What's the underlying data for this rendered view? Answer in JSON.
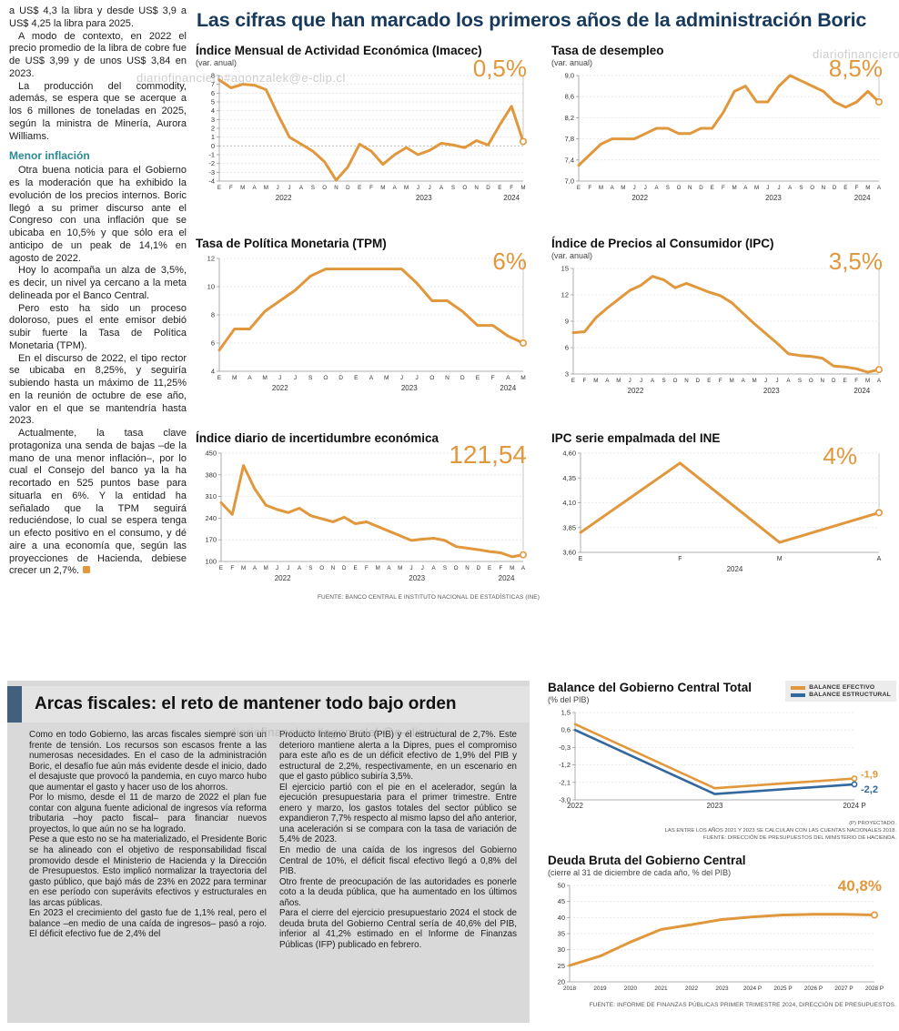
{
  "watermark": "diariofinanciero#agonzalek@e-clip.cl",
  "headline": "Las cifras que han marcado los primeros años de la administración Boric",
  "left_column": {
    "top_paragraphs": [
      "a US$ 4,3 la libra y desde US$ 3,9 a US$ 4,25 la libra para 2025.",
      "A modo de contexto, en 2022 el precio promedio de la libra de cobre fue de US$ 3,99 y de unos US$ 3,84 en 2023.",
      "La producción del commodity, además, se espera que se acerque a los 6 millones de toneladas en 2025, según la ministra de Minería, Aurora Williams."
    ],
    "subhead": "Menor inflación",
    "bottom_paragraphs": [
      "Otra buena noticia para el Gobierno es la moderación que ha exhibido la evolución de los precios internos. Boric llegó a su primer discurso ante el Congreso con una inflación que se ubicaba en 10,5% y que sólo era el anticipo de un peak de 14,1% en agosto de 2022.",
      "Hoy lo acompaña un alza de 3,5%, es decir, un nivel ya cercano a la meta delineada por el Banco Central.",
      "Pero esto ha sido un proceso doloroso, pues el ente emisor debió subir fuerte la Tasa de Política Monetaria (TPM).",
      "En el discurso de 2022, el tipo rector se ubicaba en 8,25%, y seguiría subiendo hasta un máximo de 11,25% en la reunión de octubre de ese año, valor en el que se mantendría hasta 2023."
    ],
    "last_paragraph": "Actualmente, la tasa clave protagoniza una senda de bajas –de la mano de una menor inflación–, por lo cual el Consejo del banco ya la ha recortado en 525 puntos base para situarla en 6%. Y la entidad ha señalado que la TPM seguirá reduciéndose, lo cual se espera tenga un efecto positivo en el consumo, y dé aire a una economía que, según las proyecciones de Hacienda, debiese crecer un 2,7%."
  },
  "fiscal_panel": {
    "title": "Arcas fiscales: el reto de mantener todo bajo orden",
    "col1": [
      "Como en todo Gobierno, las arcas fiscales siempre son un frente de tensión. Los recursos son escasos frente a las numerosas necesidades. En el caso de la administración Boric, el desafío fue aún más evidente desde el inicio, dado el desajuste que provocó la pandemia, en cuyo marco hubo que aumentar el gasto y hacer uso de los ahorros.",
      "Por lo mismo, desde el 11 de marzo de 2022 el plan fue contar con alguna fuente adicional de ingresos vía reforma tributaria –hoy pacto fiscal– para financiar nuevos proyectos, lo que aún no se ha logrado.",
      "Pese a que esto no se ha materializado, el Presidente Boric se ha alineado con el objetivo de responsabilidad fiscal promovido desde el Ministerio de Hacienda y la Dirección de Presupuestos. Esto implicó normalizar la trayectoria del gasto público, que bajó más de 23% en 2022 para terminar en ese período con superávits efectivos y estructurales en las arcas públicas.",
      "En 2023 el crecimiento del gasto fue de 1,1% real, pero el balance –en medio de una caída de ingresos– pasó a rojo. El déficit efectivo fue de 2,4% del"
    ],
    "col2": [
      "Producto Interno Bruto (PIB) y el estructural de 2,7%. Este deterioro mantiene alerta a la Dipres, pues el compromiso para este año es de un déficit efectivo de 1,9% del PIB y estructural de 2,2%, respectivamente, en un escenario en que el gasto público subiría 3,5%.",
      "El ejercicio partió con el pie en el acelerador, según la ejecución presupuestaria para el primer trimestre. Entre enero y marzo, los gastos totales del sector público se expandieron 7,7% respecto al mismo lapso del año anterior, una aceleración si se compara con la tasa de variación de 5,4% de 2023.",
      "En medio de una caída de los ingresos del Gobierno Central de 10%, el déficit fiscal efectivo llegó a 0,8% del PIB.",
      "Otro frente de preocupación de las autoridades es ponerle coto a la deuda pública, que ha aumentado en los últimos años.",
      "Para el cierre del ejercicio presupuestario 2024 el stock de deuda bruta del Gobierno Central sería de 40,6% del PIB, inferior al 41,2% estimado en el Informe de Finanzas Públicas (IFP) publicado en febrero."
    ]
  },
  "chart_data": [
    {
      "type": "line",
      "title": "Índice Mensual de Actividad Económica (Imacec)",
      "subtitle": "(var. anual)",
      "big_value": "0,5%",
      "y_min": -4,
      "y_max": 8,
      "zero_line": true,
      "leader": true,
      "y_ticks": [
        [
          8,
          "8"
        ],
        [
          7,
          "7"
        ],
        [
          6,
          "6"
        ],
        [
          5,
          "5"
        ],
        [
          4,
          "4"
        ],
        [
          3,
          "3"
        ],
        [
          2,
          "2"
        ],
        [
          1,
          "1"
        ],
        [
          0,
          "0"
        ],
        [
          -1,
          "-1"
        ],
        [
          -2,
          "-2"
        ],
        [
          -3,
          "-3"
        ],
        [
          -4,
          "-4"
        ]
      ],
      "x_labels": [
        "E",
        "F",
        "M",
        "A",
        "M",
        "J",
        "J",
        "A",
        "S",
        "O",
        "N",
        "D",
        "E",
        "F",
        "M",
        "A",
        "M",
        "J",
        "J",
        "A",
        "S",
        "O",
        "N",
        "D",
        "E",
        "F",
        "M"
      ],
      "years": [
        {
          "label": "2022",
          "pos": 5.5
        },
        {
          "label": "2023",
          "pos": 17.5
        },
        {
          "label": "2024",
          "pos": 25
        }
      ],
      "series": [
        {
          "name": "Imacec",
          "color": "#E1973B",
          "values": [
            7.5,
            6.6,
            7.0,
            6.9,
            6.4,
            3.6,
            1.0,
            0.2,
            -0.6,
            -1.8,
            -3.9,
            -2.4,
            0.2,
            -0.6,
            -2.1,
            -1.0,
            -0.2,
            -1.0,
            -0.5,
            0.3,
            0.1,
            -0.2,
            0.6,
            0.1,
            2.4,
            4.5,
            0.5
          ]
        }
      ]
    },
    {
      "type": "line",
      "title": "Tasa de desempleo",
      "subtitle": "(var. anual)",
      "big_value": "8,5%",
      "y_min": 7.0,
      "y_max": 9.0,
      "leader": true,
      "y_ticks": [
        [
          9.0,
          "9,0"
        ],
        [
          8.6,
          "8,6"
        ],
        [
          8.2,
          "8,2"
        ],
        [
          7.8,
          "7,8"
        ],
        [
          7.4,
          "7,4"
        ],
        [
          7.0,
          "7,0"
        ]
      ],
      "x_labels": [
        "E",
        "F",
        "M",
        "A",
        "M",
        "J",
        "J",
        "A",
        "S",
        "O",
        "N",
        "D",
        "E",
        "F",
        "M",
        "A",
        "M",
        "J",
        "J",
        "A",
        "S",
        "O",
        "N",
        "D",
        "E",
        "F",
        "M",
        "A"
      ],
      "years": [
        {
          "label": "2022",
          "pos": 5.5
        },
        {
          "label": "2023",
          "pos": 17.5
        },
        {
          "label": "2024",
          "pos": 25.5
        }
      ],
      "series": [
        {
          "name": "Tasa de desempleo",
          "color": "#E1973B",
          "values": [
            7.3,
            7.5,
            7.7,
            7.8,
            7.8,
            7.8,
            7.9,
            8.0,
            8.0,
            7.9,
            7.9,
            8.0,
            8.0,
            8.3,
            8.7,
            8.8,
            8.5,
            8.5,
            8.8,
            9.0,
            8.9,
            8.8,
            8.7,
            8.5,
            8.4,
            8.5,
            8.7,
            8.5
          ]
        }
      ]
    },
    {
      "type": "line",
      "title": "Tasa de Política Monetaria (TPM)",
      "big_value": "6%",
      "y_min": 4,
      "y_max": 12,
      "leader": true,
      "y_ticks": [
        [
          12,
          "12"
        ],
        [
          10,
          "10"
        ],
        [
          8,
          "8"
        ],
        [
          6,
          "6"
        ],
        [
          4,
          "4"
        ]
      ],
      "x_labels": [
        "E",
        "M",
        "A",
        "M",
        "J",
        "J",
        "S",
        "O",
        "D",
        "E",
        "A",
        "M",
        "J",
        "J",
        "O",
        "N",
        "D",
        "E",
        "F",
        "A",
        "M"
      ],
      "years": [
        {
          "label": "2022",
          "pos": 4
        },
        {
          "label": "2023",
          "pos": 12.5
        },
        {
          "label": "2024",
          "pos": 19
        }
      ],
      "series": [
        {
          "name": "TPM",
          "color": "#E1973B",
          "values": [
            5.5,
            7.0,
            7.0,
            8.25,
            9.0,
            9.75,
            10.75,
            11.25,
            11.25,
            11.25,
            11.25,
            11.25,
            11.25,
            10.25,
            9.0,
            9.0,
            8.25,
            7.25,
            7.25,
            6.5,
            6.0
          ]
        }
      ]
    },
    {
      "type": "line",
      "title": "Índice de Precios al Consumidor (IPC)",
      "subtitle": "(var. anual)",
      "big_value": "3,5%",
      "y_min": 3,
      "y_max": 15,
      "leader": true,
      "y_ticks": [
        [
          15,
          "15"
        ],
        [
          12,
          "12"
        ],
        [
          9,
          "9"
        ],
        [
          6,
          "6"
        ],
        [
          3,
          "3"
        ]
      ],
      "x_labels": [
        "E",
        "F",
        "M",
        "A",
        "M",
        "J",
        "J",
        "A",
        "S",
        "O",
        "N",
        "D",
        "E",
        "F",
        "M",
        "A",
        "M",
        "J",
        "J",
        "A",
        "S",
        "O",
        "N",
        "D",
        "E",
        "F",
        "M",
        "A"
      ],
      "years": [
        {
          "label": "2022",
          "pos": 5.5
        },
        {
          "label": "2023",
          "pos": 17.5
        },
        {
          "label": "2024",
          "pos": 25.5
        }
      ],
      "series": [
        {
          "name": "IPC",
          "color": "#E1973B",
          "values": [
            7.7,
            7.8,
            9.4,
            10.5,
            11.5,
            12.5,
            13.1,
            14.1,
            13.7,
            12.8,
            13.3,
            12.8,
            12.3,
            11.9,
            11.1,
            9.9,
            8.7,
            7.6,
            6.5,
            5.3,
            5.1,
            5.0,
            4.8,
            3.9,
            3.8,
            3.6,
            3.2,
            3.5
          ]
        }
      ]
    },
    {
      "type": "line",
      "title": "Índice diario de incertidumbre económica",
      "big_value": "121,54",
      "y_min": 100,
      "y_max": 450,
      "leader": true,
      "y_ticks": [
        [
          450,
          "450"
        ],
        [
          380,
          "380"
        ],
        [
          310,
          "310"
        ],
        [
          240,
          "240"
        ],
        [
          170,
          "170"
        ],
        [
          100,
          "100"
        ]
      ],
      "x_labels": [
        "E",
        "F",
        "M",
        "A",
        "M",
        "J",
        "J",
        "A",
        "S",
        "O",
        "N",
        "D",
        "E",
        "F",
        "M",
        "A",
        "M",
        "J",
        "J",
        "A",
        "S",
        "O",
        "N",
        "D",
        "E",
        "F",
        "M",
        "A"
      ],
      "years": [
        {
          "label": "2022",
          "pos": 5.5
        },
        {
          "label": "2023",
          "pos": 17.5
        },
        {
          "label": "2024",
          "pos": 25.5
        }
      ],
      "series": [
        {
          "name": "Incertidumbre económica",
          "color": "#E1973B",
          "values": [
            290,
            252,
            410,
            335,
            282,
            268,
            258,
            272,
            248,
            238,
            228,
            243,
            222,
            228,
            213,
            198,
            183,
            168,
            172,
            175,
            168,
            148,
            143,
            138,
            132,
            128,
            115,
            121.54
          ]
        }
      ],
      "source": "FUENTE: BANCO CENTRAL E INSTITUTO NACIONAL DE ESTADÍSTICAS (INE)"
    },
    {
      "type": "line",
      "title": "IPC serie empalmada del INE",
      "big_value": "4%",
      "y_min": 3.6,
      "y_max": 4.6,
      "leader": true,
      "y_ticks": [
        [
          4.6,
          "4,60"
        ],
        [
          4.35,
          "4,35"
        ],
        [
          4.1,
          "4,10"
        ],
        [
          3.85,
          "3,85"
        ],
        [
          3.6,
          "3,60"
        ]
      ],
      "x_labels": [
        "E",
        "F",
        "M",
        "A"
      ],
      "years": [
        {
          "label": "2024",
          "pos": 1.55
        }
      ],
      "series": [
        {
          "name": "IPC serie empalmada",
          "color": "#E1973B",
          "values": [
            3.8,
            4.5,
            3.7,
            4.0
          ]
        }
      ]
    },
    {
      "type": "line",
      "title": "Balance del Gobierno Central Total",
      "subtitle": "(% del PIB)",
      "y_min": -3.0,
      "y_max": 1.5,
      "y_ticks": [
        [
          1.5,
          "1,5"
        ],
        [
          0.6,
          "0,6"
        ],
        [
          -0.3,
          "-0,3"
        ],
        [
          -1.2,
          "-1,2"
        ],
        [
          -2.1,
          "-2,1"
        ],
        [
          -3.0,
          "-3,0"
        ]
      ],
      "x_labels": [
        "2022",
        "2023",
        "2024 P"
      ],
      "legend": [
        {
          "label": "BALANCE EFECTIVO",
          "color": "#E1973B"
        },
        {
          "label": "BALANCE ESTRUCTURAL",
          "color": "#33689E"
        }
      ],
      "series": [
        {
          "name": "Balance efectivo",
          "color": "#E1973B",
          "width": 2.6,
          "values": [
            0.9,
            -2.4,
            -1.9
          ]
        },
        {
          "name": "Balance estructural",
          "color": "#33689E",
          "width": 2.6,
          "values": [
            0.6,
            -2.7,
            -2.2
          ]
        }
      ],
      "end_labels": [
        {
          "text": "-1,9",
          "color": "#E1973B"
        },
        {
          "text": "-2,2",
          "color": "#33689E"
        }
      ],
      "notes": [
        "(P) PROYECTADO.",
        "LAS ENTRE LOS AÑOS 2021 Y 2023 SE CALCULAN CON LAS CUENTAS NACIONALES 2018.",
        "FUENTE: DIRECCIÓN DE PRESUPUESTOS DEL MINISTERIO DE HACIENDA."
      ]
    },
    {
      "type": "line",
      "title": "Deuda Bruta del Gobierno Central",
      "subtitle": "(cierre al 31 de diciembre de cada año, % del PIB)",
      "big_value": "40,8%",
      "y_min": 20,
      "y_max": 50,
      "y_ticks": [
        [
          50,
          "50"
        ],
        [
          45,
          "45"
        ],
        [
          40,
          "40"
        ],
        [
          35,
          "35"
        ],
        [
          30,
          "30"
        ],
        [
          25,
          "25"
        ],
        [
          20,
          "20"
        ]
      ],
      "x_labels": [
        "2018",
        "2019",
        "2020",
        "2021",
        "2022",
        "2023",
        "2024 P",
        "2025 P",
        "2026 P",
        "2027 P",
        "2028 P"
      ],
      "series": [
        {
          "name": "Deuda bruta",
          "color": "#E1973B",
          "values": [
            25.1,
            28.0,
            32.4,
            36.3,
            37.8,
            39.4,
            40.2,
            40.8,
            41.0,
            41.0,
            40.8
          ]
        }
      ],
      "source": "FUENTE: INFORME DE FINANZAS PÚBLICAS PRIMER TRIMESTRE 2024, DIRECCIÓN DE PRESUPUESTOS."
    }
  ],
  "colors": {
    "accent_orange": "#E1973B",
    "accent_blue": "#33689E",
    "headline_navy": "#17395C",
    "subhead_teal": "#2B8A93",
    "panel_gray": "#D9D9D9",
    "panel_accent": "#40607E"
  }
}
